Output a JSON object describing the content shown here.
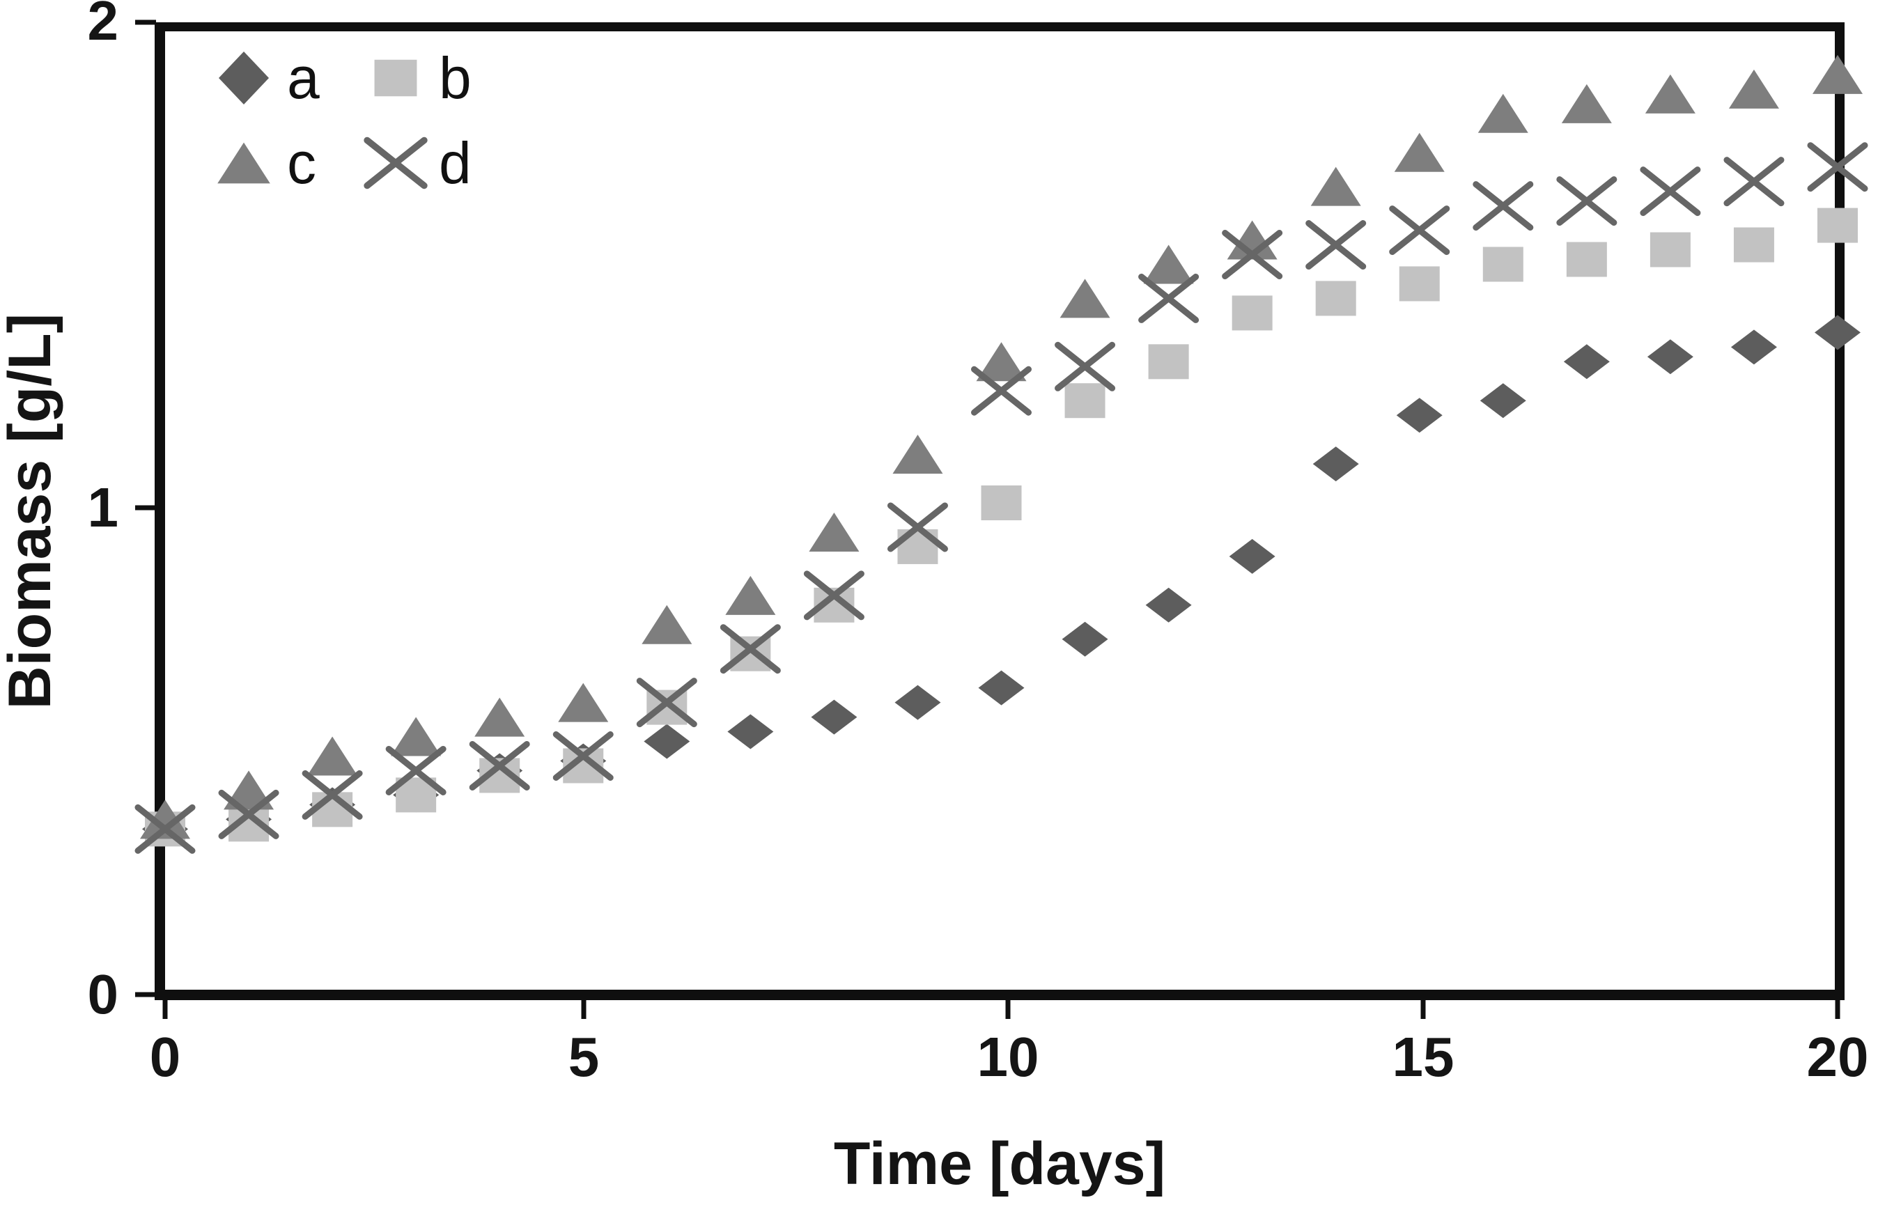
{
  "figure": {
    "background": "#ffffff",
    "axis_color": "#0f0f0f",
    "text_color": "#151515"
  },
  "chart_data": {
    "type": "scatter",
    "title": "",
    "xlabel": "Time [days]",
    "ylabel": "Biomass [g/L]",
    "xlim": [
      0,
      20
    ],
    "ylim": [
      0,
      2
    ],
    "grid": false,
    "legend_position": "inside top-left, 2 columns",
    "x_tick_values": [
      0,
      5,
      10,
      15,
      20
    ],
    "x_tick_labels": [
      "0",
      "5",
      "10",
      "15",
      "20"
    ],
    "y_tick_values": [
      0,
      1,
      2
    ],
    "y_tick_labels": [
      "0",
      "1",
      "2"
    ],
    "x": [
      0,
      1,
      2,
      3,
      4,
      5,
      6,
      7,
      8,
      9,
      10,
      11,
      12,
      13,
      14,
      15,
      16,
      17,
      18,
      19,
      20
    ],
    "series": [
      {
        "name": "a",
        "marker": "diamond",
        "color": "#5d5d5d",
        "values": [
          0.34,
          0.36,
          0.39,
          0.41,
          0.46,
          0.48,
          0.52,
          0.54,
          0.57,
          0.6,
          0.63,
          0.73,
          0.8,
          0.9,
          1.09,
          1.19,
          1.22,
          1.3,
          1.31,
          1.33,
          1.36
        ]
      },
      {
        "name": "b",
        "marker": "square",
        "color": "#c2c2c2",
        "values": [
          0.34,
          0.35,
          0.38,
          0.41,
          0.45,
          0.47,
          0.59,
          0.7,
          0.8,
          0.92,
          1.01,
          1.22,
          1.3,
          1.4,
          1.43,
          1.46,
          1.5,
          1.51,
          1.53,
          1.54,
          1.58
        ]
      },
      {
        "name": "c",
        "marker": "triangle",
        "color": "#7e7e7e",
        "values": [
          0.36,
          0.42,
          0.49,
          0.53,
          0.57,
          0.6,
          0.76,
          0.82,
          0.95,
          1.11,
          1.3,
          1.43,
          1.5,
          1.55,
          1.66,
          1.73,
          1.81,
          1.83,
          1.85,
          1.86,
          1.89
        ]
      },
      {
        "name": "d",
        "marker": "x",
        "color": "#666666",
        "values": [
          0.34,
          0.37,
          0.41,
          0.46,
          0.47,
          0.49,
          0.6,
          0.71,
          0.82,
          0.96,
          1.24,
          1.29,
          1.43,
          1.52,
          1.54,
          1.57,
          1.62,
          1.63,
          1.65,
          1.67,
          1.7
        ]
      }
    ]
  }
}
